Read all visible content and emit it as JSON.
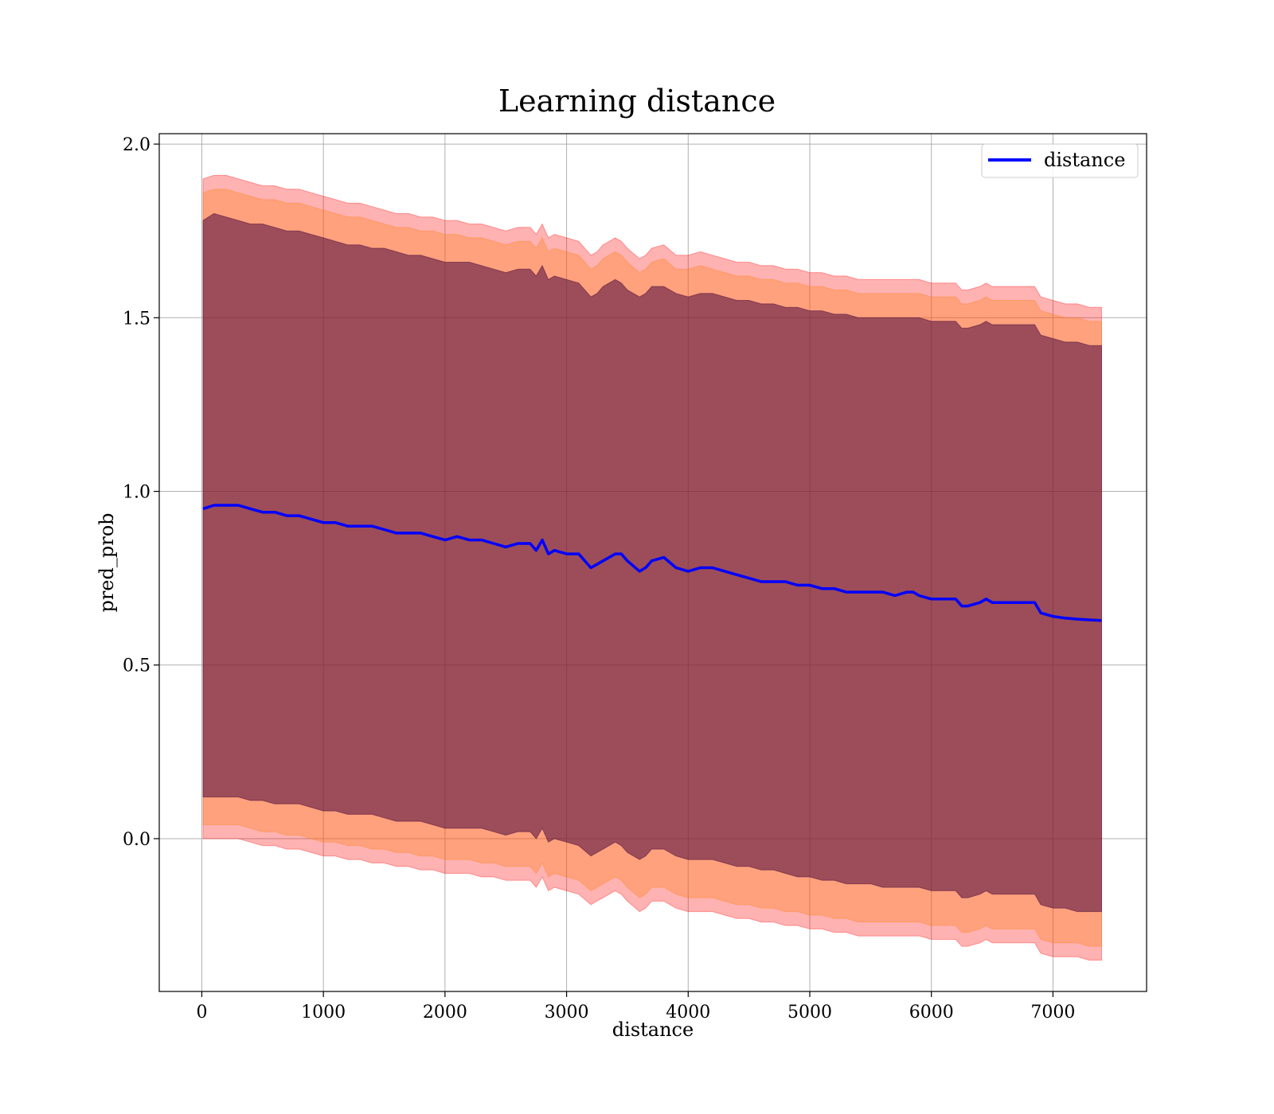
{
  "chart_data": {
    "type": "line",
    "title": "Learning distance",
    "xlabel": "distance",
    "ylabel": "pred_prob",
    "xlim": [
      -350,
      7770
    ],
    "ylim": [
      -0.44,
      2.03
    ],
    "grid": true,
    "legend_position": "top-right",
    "x_ticks": [
      0,
      1000,
      2000,
      3000,
      4000,
      5000,
      6000,
      7000
    ],
    "x_tick_labels": [
      "0",
      "1000",
      "2000",
      "3000",
      "4000",
      "5000",
      "6000",
      "7000"
    ],
    "y_ticks": [
      0.0,
      0.5,
      1.0,
      1.5,
      2.0
    ],
    "y_tick_labels": [
      "0.0",
      "0.5",
      "1.0",
      "1.5",
      "2.0"
    ],
    "colors": {
      "line": "#0000ff",
      "band_outer": "#ff0000",
      "band_middle": "#ff7f0e",
      "band_inner": "#4b0a3c"
    },
    "series": [
      {
        "name": "distance",
        "x": [
          10,
          100,
          200,
          300,
          400,
          500,
          600,
          700,
          800,
          900,
          1000,
          1100,
          1200,
          1300,
          1400,
          1500,
          1600,
          1700,
          1800,
          1900,
          2000,
          2100,
          2200,
          2300,
          2400,
          2500,
          2600,
          2700,
          2750,
          2800,
          2850,
          2900,
          3000,
          3100,
          3200,
          3250,
          3300,
          3400,
          3450,
          3500,
          3600,
          3650,
          3700,
          3800,
          3900,
          4000,
          4100,
          4200,
          4300,
          4400,
          4500,
          4600,
          4700,
          4800,
          4900,
          5000,
          5100,
          5200,
          5300,
          5400,
          5500,
          5600,
          5700,
          5800,
          5850,
          5900,
          6000,
          6100,
          6200,
          6250,
          6300,
          6400,
          6450,
          6500,
          6600,
          6700,
          6800,
          6850,
          6900,
          7000,
          7100,
          7200,
          7300,
          7400
        ],
        "values": [
          0.95,
          0.96,
          0.96,
          0.96,
          0.95,
          0.94,
          0.94,
          0.93,
          0.93,
          0.92,
          0.91,
          0.91,
          0.9,
          0.9,
          0.9,
          0.89,
          0.88,
          0.88,
          0.88,
          0.87,
          0.86,
          0.87,
          0.86,
          0.86,
          0.85,
          0.84,
          0.85,
          0.85,
          0.83,
          0.86,
          0.82,
          0.83,
          0.82,
          0.82,
          0.78,
          0.79,
          0.8,
          0.82,
          0.82,
          0.8,
          0.77,
          0.78,
          0.8,
          0.81,
          0.78,
          0.77,
          0.78,
          0.78,
          0.77,
          0.76,
          0.75,
          0.74,
          0.74,
          0.74,
          0.73,
          0.73,
          0.72,
          0.72,
          0.71,
          0.71,
          0.71,
          0.71,
          0.7,
          0.71,
          0.71,
          0.7,
          0.69,
          0.69,
          0.69,
          0.67,
          0.67,
          0.68,
          0.69,
          0.68,
          0.68,
          0.68,
          0.68,
          0.68,
          0.65,
          0.64,
          0.635,
          0.632,
          0.63,
          0.628
        ],
        "band_inner_upper": [
          1.78,
          1.8,
          1.79,
          1.78,
          1.77,
          1.77,
          1.76,
          1.75,
          1.75,
          1.74,
          1.73,
          1.72,
          1.71,
          1.71,
          1.7,
          1.7,
          1.69,
          1.68,
          1.68,
          1.67,
          1.66,
          1.66,
          1.66,
          1.65,
          1.64,
          1.63,
          1.64,
          1.64,
          1.62,
          1.65,
          1.61,
          1.62,
          1.61,
          1.6,
          1.56,
          1.57,
          1.59,
          1.61,
          1.6,
          1.58,
          1.56,
          1.57,
          1.59,
          1.59,
          1.57,
          1.56,
          1.57,
          1.57,
          1.56,
          1.55,
          1.55,
          1.54,
          1.54,
          1.53,
          1.53,
          1.52,
          1.52,
          1.51,
          1.51,
          1.5,
          1.5,
          1.5,
          1.5,
          1.5,
          1.5,
          1.5,
          1.49,
          1.49,
          1.49,
          1.47,
          1.47,
          1.48,
          1.49,
          1.48,
          1.48,
          1.48,
          1.48,
          1.48,
          1.45,
          1.44,
          1.43,
          1.43,
          1.42,
          1.42
        ],
        "band_inner_lower": [
          0.12,
          0.12,
          0.12,
          0.12,
          0.11,
          0.11,
          0.1,
          0.1,
          0.1,
          0.09,
          0.08,
          0.08,
          0.07,
          0.07,
          0.07,
          0.06,
          0.05,
          0.05,
          0.05,
          0.04,
          0.03,
          0.03,
          0.03,
          0.03,
          0.02,
          0.01,
          0.02,
          0.02,
          0.0,
          0.03,
          -0.01,
          0.0,
          -0.01,
          -0.02,
          -0.05,
          -0.04,
          -0.03,
          -0.01,
          -0.02,
          -0.04,
          -0.06,
          -0.05,
          -0.03,
          -0.03,
          -0.05,
          -0.06,
          -0.06,
          -0.06,
          -0.07,
          -0.08,
          -0.08,
          -0.09,
          -0.09,
          -0.1,
          -0.11,
          -0.11,
          -0.12,
          -0.12,
          -0.13,
          -0.13,
          -0.13,
          -0.14,
          -0.14,
          -0.14,
          -0.14,
          -0.14,
          -0.15,
          -0.15,
          -0.15,
          -0.17,
          -0.17,
          -0.16,
          -0.15,
          -0.16,
          -0.16,
          -0.16,
          -0.16,
          -0.16,
          -0.19,
          -0.2,
          -0.2,
          -0.21,
          -0.21,
          -0.21
        ],
        "band_middle_upper": [
          1.86,
          1.87,
          1.87,
          1.86,
          1.85,
          1.84,
          1.84,
          1.83,
          1.83,
          1.82,
          1.81,
          1.8,
          1.79,
          1.79,
          1.78,
          1.77,
          1.76,
          1.76,
          1.75,
          1.75,
          1.74,
          1.74,
          1.73,
          1.73,
          1.72,
          1.71,
          1.72,
          1.72,
          1.7,
          1.73,
          1.69,
          1.7,
          1.69,
          1.68,
          1.64,
          1.65,
          1.67,
          1.69,
          1.68,
          1.66,
          1.63,
          1.64,
          1.66,
          1.67,
          1.64,
          1.64,
          1.65,
          1.64,
          1.63,
          1.62,
          1.62,
          1.61,
          1.61,
          1.6,
          1.6,
          1.59,
          1.59,
          1.58,
          1.58,
          1.57,
          1.57,
          1.57,
          1.57,
          1.57,
          1.57,
          1.57,
          1.56,
          1.56,
          1.56,
          1.54,
          1.54,
          1.55,
          1.56,
          1.55,
          1.55,
          1.55,
          1.55,
          1.55,
          1.52,
          1.51,
          1.5,
          1.5,
          1.49,
          1.49
        ],
        "band_middle_lower": [
          0.04,
          0.04,
          0.04,
          0.04,
          0.03,
          0.02,
          0.02,
          0.01,
          0.01,
          0.0,
          -0.01,
          -0.01,
          -0.02,
          -0.02,
          -0.03,
          -0.03,
          -0.04,
          -0.04,
          -0.05,
          -0.05,
          -0.06,
          -0.06,
          -0.06,
          -0.07,
          -0.07,
          -0.08,
          -0.08,
          -0.08,
          -0.1,
          -0.07,
          -0.11,
          -0.1,
          -0.11,
          -0.12,
          -0.15,
          -0.14,
          -0.13,
          -0.11,
          -0.12,
          -0.14,
          -0.17,
          -0.16,
          -0.14,
          -0.14,
          -0.16,
          -0.17,
          -0.17,
          -0.17,
          -0.18,
          -0.19,
          -0.19,
          -0.2,
          -0.2,
          -0.21,
          -0.21,
          -0.22,
          -0.22,
          -0.23,
          -0.23,
          -0.24,
          -0.24,
          -0.24,
          -0.24,
          -0.24,
          -0.24,
          -0.24,
          -0.25,
          -0.25,
          -0.25,
          -0.27,
          -0.27,
          -0.26,
          -0.25,
          -0.26,
          -0.26,
          -0.26,
          -0.26,
          -0.26,
          -0.29,
          -0.3,
          -0.3,
          -0.3,
          -0.31,
          -0.31
        ],
        "band_outer_upper": [
          1.9,
          1.91,
          1.91,
          1.9,
          1.89,
          1.88,
          1.88,
          1.87,
          1.87,
          1.86,
          1.85,
          1.84,
          1.83,
          1.83,
          1.82,
          1.81,
          1.8,
          1.8,
          1.79,
          1.79,
          1.78,
          1.78,
          1.77,
          1.77,
          1.76,
          1.75,
          1.76,
          1.76,
          1.74,
          1.77,
          1.73,
          1.74,
          1.73,
          1.72,
          1.68,
          1.69,
          1.71,
          1.73,
          1.72,
          1.7,
          1.67,
          1.68,
          1.7,
          1.71,
          1.68,
          1.68,
          1.69,
          1.68,
          1.67,
          1.66,
          1.66,
          1.65,
          1.65,
          1.64,
          1.64,
          1.63,
          1.63,
          1.62,
          1.62,
          1.61,
          1.61,
          1.61,
          1.61,
          1.61,
          1.61,
          1.61,
          1.6,
          1.6,
          1.6,
          1.58,
          1.58,
          1.59,
          1.6,
          1.59,
          1.59,
          1.59,
          1.59,
          1.59,
          1.56,
          1.55,
          1.54,
          1.54,
          1.53,
          1.53
        ],
        "band_outer_lower": [
          0.0,
          0.0,
          0.0,
          0.0,
          -0.01,
          -0.02,
          -0.02,
          -0.03,
          -0.03,
          -0.04,
          -0.05,
          -0.05,
          -0.06,
          -0.06,
          -0.07,
          -0.07,
          -0.08,
          -0.08,
          -0.09,
          -0.09,
          -0.1,
          -0.1,
          -0.1,
          -0.11,
          -0.11,
          -0.12,
          -0.12,
          -0.12,
          -0.14,
          -0.11,
          -0.15,
          -0.14,
          -0.15,
          -0.16,
          -0.19,
          -0.18,
          -0.17,
          -0.15,
          -0.16,
          -0.18,
          -0.21,
          -0.2,
          -0.18,
          -0.18,
          -0.2,
          -0.21,
          -0.21,
          -0.21,
          -0.22,
          -0.23,
          -0.23,
          -0.24,
          -0.24,
          -0.25,
          -0.25,
          -0.26,
          -0.26,
          -0.27,
          -0.27,
          -0.28,
          -0.28,
          -0.28,
          -0.28,
          -0.28,
          -0.28,
          -0.28,
          -0.29,
          -0.29,
          -0.29,
          -0.31,
          -0.31,
          -0.3,
          -0.29,
          -0.3,
          -0.3,
          -0.3,
          -0.3,
          -0.3,
          -0.33,
          -0.34,
          -0.34,
          -0.34,
          -0.35,
          -0.35
        ]
      }
    ]
  }
}
